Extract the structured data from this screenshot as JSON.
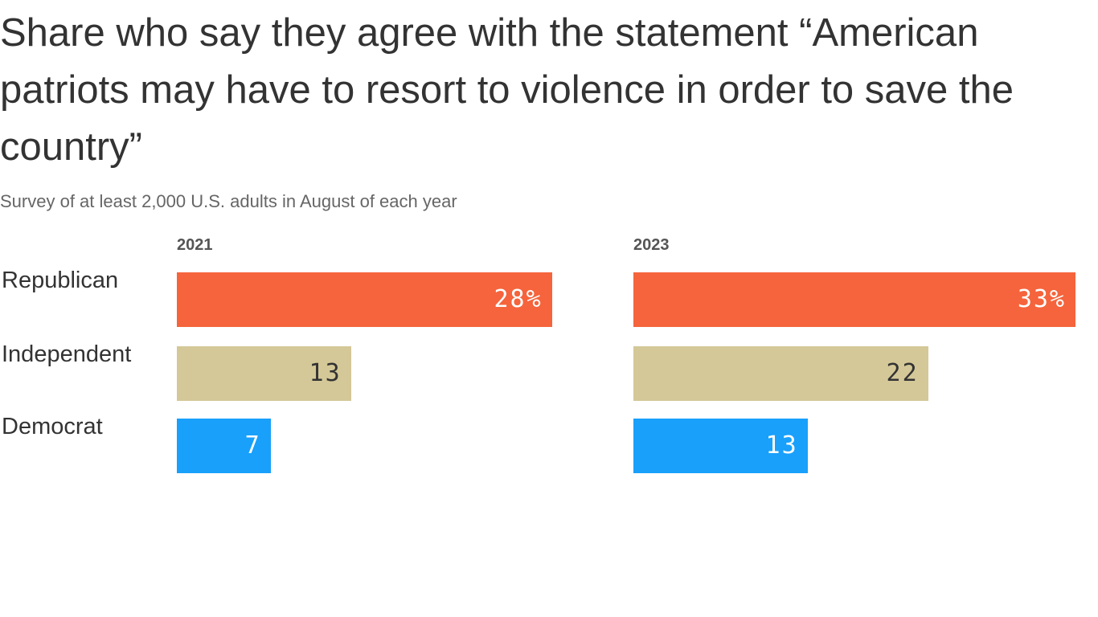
{
  "chart_data": {
    "type": "bar",
    "orientation": "horizontal",
    "title": "Share who say they agree with the statement “American patriots may have to resort to violence in order to save the country”",
    "subtitle": "Survey of at least 2,000 U.S. adults in August of each year",
    "categories": [
      "Republican",
      "Independent",
      "Democrat"
    ],
    "colors": [
      "#f5643c",
      "#d4c898",
      "#18a0fb"
    ],
    "label_colors": [
      "#ffffff",
      "#333333",
      "#ffffff"
    ],
    "panels": [
      {
        "name": "2021",
        "values": [
          28,
          13,
          7
        ],
        "labels": [
          "28%",
          "13",
          "7"
        ]
      },
      {
        "name": "2023",
        "values": [
          33,
          22,
          13
        ],
        "labels": [
          "33%",
          "22",
          "13"
        ]
      }
    ],
    "xlim": [
      0,
      33
    ],
    "grid": false
  }
}
